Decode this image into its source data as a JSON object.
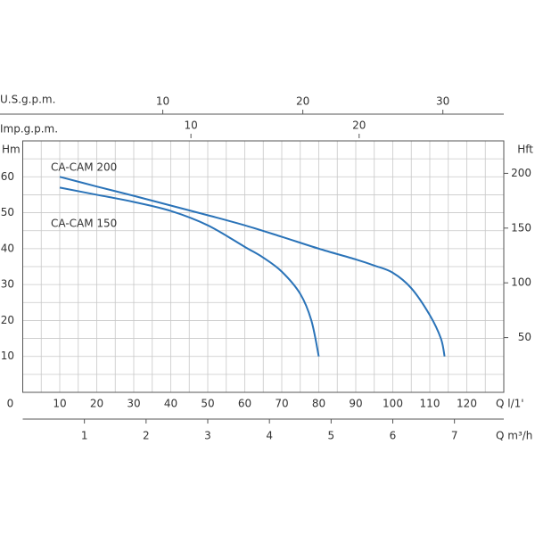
{
  "chart_data": {
    "type": "line",
    "x_label": "Q  l/1'",
    "y_label": "Hm",
    "y2_label": "Hft",
    "xlim": [
      0,
      130
    ],
    "xticks": [
      0,
      10,
      20,
      30,
      40,
      50,
      60,
      70,
      80,
      90,
      100,
      110,
      120
    ],
    "ylim": [
      0,
      70
    ],
    "yticks": [
      10,
      20,
      30,
      40,
      50,
      60
    ],
    "y2lim": [
      0,
      229.66
    ],
    "y2ticks": [
      50,
      100,
      150,
      200
    ],
    "grid": true,
    "top_axes": [
      {
        "label": "U.S.g.p.m.",
        "lim": [
          0,
          34.35
        ],
        "ticks": [
          10,
          20,
          30
        ]
      },
      {
        "label": "Imp.g.p.m.",
        "lim": [
          0,
          28.6
        ],
        "ticks": [
          10,
          20
        ]
      }
    ],
    "bottom_axis2": {
      "label": "Q  m³/h",
      "lim": [
        0,
        7.8
      ],
      "ticks": [
        1,
        2,
        3,
        4,
        5,
        6,
        7
      ]
    },
    "series": [
      {
        "name": "CA-CAM 200",
        "color": "#2a73b8",
        "x": [
          10,
          20,
          30,
          40,
          50,
          60,
          70,
          80,
          90,
          95,
          100,
          105,
          110,
          113,
          114
        ],
        "values": [
          60,
          57.3,
          54.7,
          52,
          49.3,
          46.5,
          43.3,
          40,
          37,
          35.3,
          33.3,
          29,
          21.5,
          15,
          10
        ]
      },
      {
        "name": "CA-CAM 150",
        "color": "#2a73b8",
        "x": [
          10,
          20,
          30,
          40,
          50,
          60,
          65,
          70,
          75,
          78,
          80
        ],
        "values": [
          57,
          55,
          53,
          50.5,
          46.5,
          40.5,
          37.5,
          33.6,
          27.4,
          20,
          10
        ]
      }
    ]
  }
}
